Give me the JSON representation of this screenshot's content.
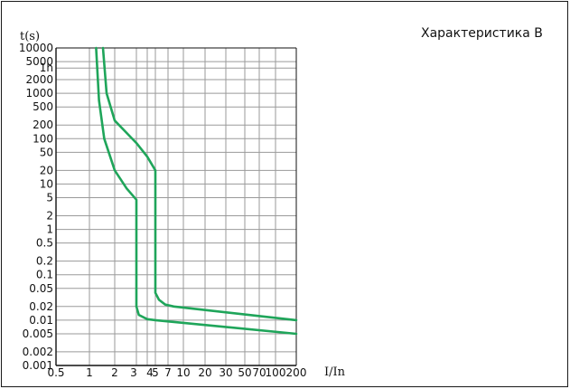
{
  "chart_data": {
    "type": "line",
    "title": "Характеристика B",
    "ylabel": "t(s)",
    "xlabel": "I/In",
    "ylim": [
      0.001,
      10000
    ],
    "yscale": "log",
    "y_ticks": [
      {
        "label": "10000",
        "value": 10000
      },
      {
        "label": "5000",
        "value": 5000
      },
      {
        "label": "1h",
        "value": 3600
      },
      {
        "label": "2000",
        "value": 2000
      },
      {
        "label": "1000",
        "value": 1000
      },
      {
        "label": "500",
        "value": 500
      },
      {
        "label": "200",
        "value": 200
      },
      {
        "label": "100",
        "value": 100
      },
      {
        "label": "50",
        "value": 50
      },
      {
        "label": "20",
        "value": 20
      },
      {
        "label": "10",
        "value": 10
      },
      {
        "label": "5",
        "value": 5
      },
      {
        "label": "2",
        "value": 2
      },
      {
        "label": "1",
        "value": 1
      },
      {
        "label": "0.5",
        "value": 0.5
      },
      {
        "label": "0.2",
        "value": 0.2
      },
      {
        "label": "0.1",
        "value": 0.1
      },
      {
        "label": "0.05",
        "value": 0.05
      },
      {
        "label": "0.02",
        "value": 0.02
      },
      {
        "label": "0.01",
        "value": 0.01
      },
      {
        "label": "0.005",
        "value": 0.005
      },
      {
        "label": "0.002",
        "value": 0.002
      },
      {
        "label": "0.001",
        "value": 0.001
      }
    ],
    "x_ticks": [
      {
        "label": "0.5",
        "value": 0.5
      },
      {
        "label": "1",
        "value": 1
      },
      {
        "label": "2",
        "value": 2
      },
      {
        "label": "3",
        "value": 3
      },
      {
        "label": "4",
        "value": 4
      },
      {
        "label": "5",
        "value": 5
      },
      {
        "label": "7",
        "value": 7
      },
      {
        "label": "10",
        "value": 10
      },
      {
        "label": "20",
        "value": 20
      },
      {
        "label": "30",
        "value": 30
      },
      {
        "label": "50",
        "value": 50
      },
      {
        "label": "70",
        "value": 70
      },
      {
        "label": "100",
        "value": 100
      },
      {
        "label": "200",
        "value": 200
      }
    ],
    "x_gridlines": [
      0.5,
      1,
      2,
      3,
      4,
      5,
      7,
      10,
      20,
      30,
      50,
      70,
      100,
      200
    ],
    "grid": true,
    "series": [
      {
        "color": "#1fa55a",
        "points": [
          [
            1.2,
            10000
          ],
          [
            1.3,
            700
          ],
          [
            1.5,
            100
          ],
          [
            2,
            20
          ],
          [
            2.5,
            8
          ],
          [
            3,
            4.5
          ],
          [
            3,
            0.02
          ],
          [
            3.2,
            0.013
          ],
          [
            4,
            0.0105
          ],
          [
            5,
            0.01
          ],
          [
            200,
            0.005
          ]
        ]
      },
      {
        "color": "#1fa55a",
        "points": [
          [
            1.45,
            10000
          ],
          [
            1.6,
            1000
          ],
          [
            2,
            250
          ],
          [
            3,
            80
          ],
          [
            4,
            40
          ],
          [
            5,
            20
          ],
          [
            5,
            0.04
          ],
          [
            5.5,
            0.028
          ],
          [
            6.5,
            0.022
          ],
          [
            8,
            0.02
          ],
          [
            200,
            0.01
          ]
        ]
      }
    ]
  }
}
